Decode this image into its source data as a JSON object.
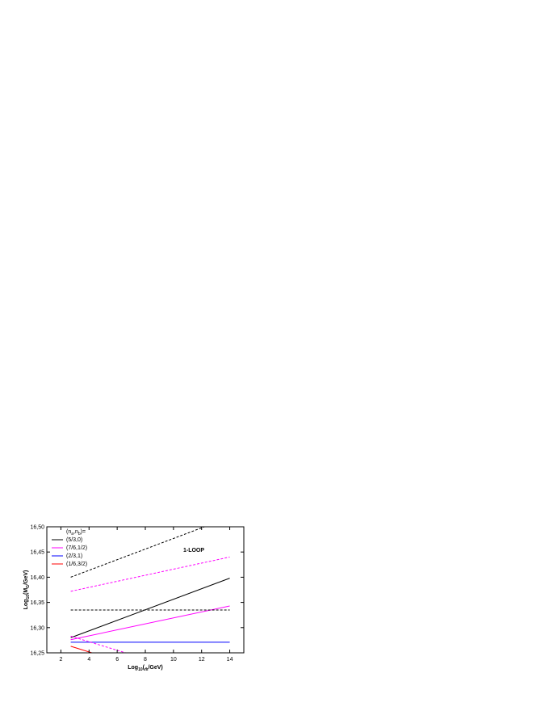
{
  "chart_data": {
    "type": "line",
    "xlabel": [
      "Log",
      "10",
      "(",
      "m̃",
      "/GeV)"
    ],
    "ylabel": [
      "Log",
      "10",
      "(M",
      "G",
      "/GeV)"
    ],
    "legend_title": [
      "(n",
      "a",
      ",n",
      "b",
      ")="
    ],
    "annotation": "1-LOOP",
    "xlim": [
      1,
      15
    ],
    "ylim": [
      16.25,
      16.5
    ],
    "xticks": [
      2,
      4,
      6,
      8,
      10,
      12,
      14
    ],
    "yticks": [
      {
        "value": 16.25,
        "label": "16,25"
      },
      {
        "value": 16.3,
        "label": "16,30"
      },
      {
        "value": 16.35,
        "label": "16,35"
      },
      {
        "value": 16.4,
        "label": "16,40"
      },
      {
        "value": 16.45,
        "label": "16,45"
      },
      {
        "value": 16.5,
        "label": "16,50"
      }
    ],
    "legend": "upper left",
    "series": [
      {
        "name": "(5/3,0)",
        "color": "#000000",
        "x": [
          2.7,
          14
        ],
        "values": [
          16.28,
          16.398
        ]
      },
      {
        "name": "(7/6,1/2)",
        "color": "#ff00ff",
        "x": [
          2.7,
          14
        ],
        "values": [
          16.276,
          16.343
        ]
      },
      {
        "name": "(2/3,1)",
        "color": "#0000ff",
        "x": [
          2.7,
          14
        ],
        "values": [
          16.271,
          16.271
        ]
      },
      {
        "name": "(1/6,3/2)",
        "color": "#ff0000",
        "x": [
          2.7,
          4.2
        ],
        "values": [
          16.263,
          16.25
        ]
      },
      {
        "color": "#000000",
        "dash": true,
        "x": [
          2.7,
          12.2
        ],
        "values": [
          16.4,
          16.5
        ]
      },
      {
        "color": "#ff00ff",
        "dash": true,
        "x": [
          2.7,
          14
        ],
        "values": [
          16.372,
          16.44
        ]
      },
      {
        "color": "#000000",
        "dash": true,
        "x": [
          2.7,
          14
        ],
        "values": [
          16.335,
          16.335
        ]
      },
      {
        "color": "#ff00ff",
        "dash": true,
        "x": [
          2.7,
          6.6
        ],
        "values": [
          16.283,
          16.25
        ]
      }
    ]
  }
}
